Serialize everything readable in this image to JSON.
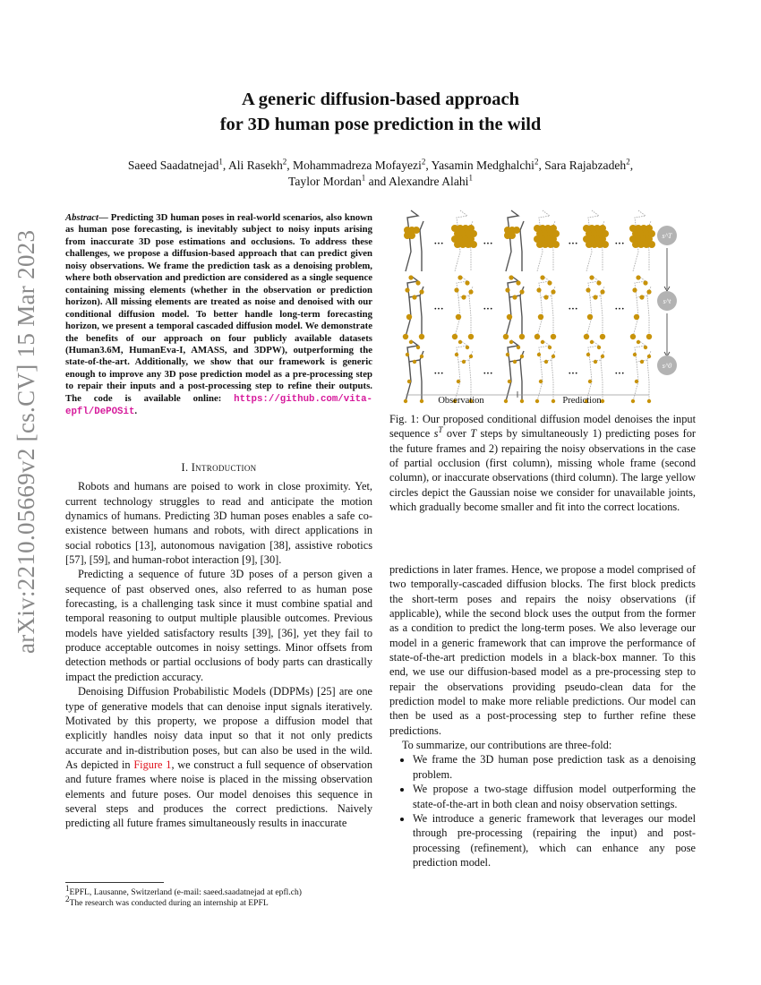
{
  "sidebar_stamp": "arXiv:2210.05669v2  [cs.CV]  15 Mar 2023",
  "title": [
    "A generic diffusion-based approach",
    "for 3D human pose prediction in the wild"
  ],
  "authors": [
    {
      "name": "Saeed Saadatnejad",
      "aff": "1",
      "sep": ", "
    },
    {
      "name": "Ali Rasekh",
      "aff": "2",
      "sep": ", "
    },
    {
      "name": "Mohammadreza Mofayezi",
      "aff": "2",
      "sep": ", "
    },
    {
      "name": "Yasamin Medghalchi",
      "aff": "2",
      "sep": ", "
    },
    {
      "name": "Sara Rajabzadeh",
      "aff": "2",
      "sep": ","
    },
    {
      "name": "Taylor Mordan",
      "aff": "1",
      "sep": " and "
    },
    {
      "name": "Alexandre Alahi",
      "aff": "1",
      "sep": ""
    }
  ],
  "abstract": {
    "lead": "Abstract",
    "text": "— Predicting 3D human poses in real-world scenarios, also known as human pose forecasting, is inevitably subject to noisy inputs arising from inaccurate 3D pose estimations and occlusions. To address these challenges, we propose a diffusion-based approach that can predict given noisy observations. We frame the prediction task as a denoising problem, where both observation and prediction are considered as a single sequence containing missing elements (whether in the observation or prediction horizon). All missing elements are treated as noise and denoised with our conditional diffusion model. To better handle long-term forecasting horizon, we present a temporal cascaded diffusion model. We demonstrate the benefits of our approach on four publicly available datasets (Human3.6M, HumanEva-I, AMASS, and 3DPW), outperforming the state-of-the-art. Additionally, we show that our framework is generic enough to improve any 3D pose prediction model as a pre-processing step to repair their inputs and a post-processing step to refine their outputs. The code is available online: ",
    "link": "https://github.com/vita-epfl/DePOSit",
    "end": "."
  },
  "section1": {
    "title": "I. Introduction"
  },
  "intro": {
    "p1": "Robots and humans are poised to work in close proximity. Yet, current technology struggles to read and anticipate the motion dynamics of humans. Predicting 3D human poses enables a safe co-existence between humans and robots, with direct applications in social robotics [13], autonomous navigation [38], assistive robotics [57], [59], and human-robot interaction [9], [30].",
    "p2": "Predicting a sequence of future 3D poses of a person given a sequence of past observed ones, also referred to as human pose forecasting, is a challenging task since it must combine spatial and temporal reasoning to output multiple plausible outcomes. Previous models have yielded satisfactory results [39], [36], yet they fail to produce acceptable outcomes in noisy settings. Minor offsets from detection methods or partial occlusions of body parts can drastically impact the prediction accuracy.",
    "p3a": "Denoising Diffusion Probabilistic Models (DDPMs) [25] are one type of generative models that can denoise input signals iteratively. Motivated by this property, we propose a diffusion model that explicitly handles noisy data input so that it not only predicts accurate and in-distribution poses, but can also be used in the wild. As depicted in ",
    "p3ref": "Figure 1",
    "p3b": ", we construct a full sequence of observation and future frames where noise is placed in the missing observation elements and future poses. Our model denoises this sequence in several steps and produces the correct predictions. Naively predicting all future frames simultaneously results in inaccurate",
    "p4": "predictions in later frames. Hence, we propose a model comprised of two temporally-cascaded diffusion blocks. The first block predicts the short-term poses and repairs the noisy observations (if applicable), while the second block uses the output from the former as a condition to predict the long-term poses. We also leverage our model in a generic framework that can improve the performance of state-of-the-art prediction models in a black-box manner. To this end, we use our diffusion-based model as a pre-processing step to repair the observations providing pseudo-clean data for the prediction model to make more reliable predictions. Our model can then be used as a post-processing step to further refine these predictions.",
    "p5": "To summarize, our contributions are three-fold:",
    "bullets": [
      "We frame the 3D human pose prediction task as a denoising problem.",
      "We propose a two-stage diffusion model outperforming the state-of-the-art in both clean and noisy observation settings.",
      "We introduce a generic framework that leverages our model through pre-processing (repairing the input) and post-processing (refinement), which can enhance any pose prediction model."
    ]
  },
  "figure": {
    "labels": {
      "observation": "Observation",
      "prediction": "Prediction"
    },
    "steps": [
      "s^T",
      "s^t",
      "s^0"
    ],
    "noise_color": "#c8930a",
    "caption": "Fig. 1: Our proposed conditional diffusion model denoises the input sequence s^T over T steps by simultaneously 1) predicting poses for the future frames and 2) repairing the noisy observations in the case of partial occlusion (first column), missing whole frame (second column), or inaccurate observations (third column). The large yellow circles depict the Gaussian noise we consider for unavailable joints, which gradually become smaller and fit into the correct locations."
  },
  "footnotes": [
    {
      "mark": "1",
      "text": "EPFL, Lausanne, Switzerland (e-mail: saeed.saadatnejad at epfl.ch)"
    },
    {
      "mark": "2",
      "text": "The research was conducted during an internship at EPFL"
    }
  ]
}
